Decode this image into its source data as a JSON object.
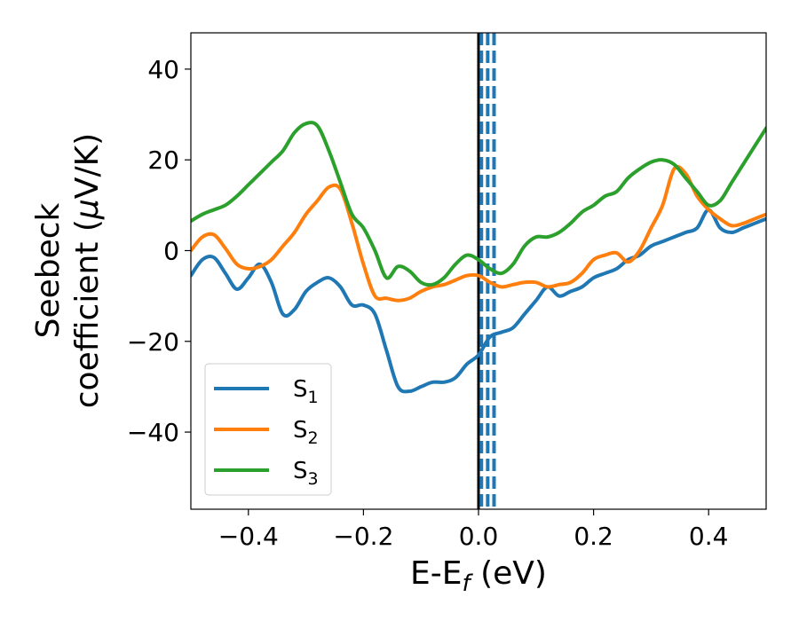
{
  "chart_data": {
    "type": "line",
    "xlabel": {
      "main": "E-E",
      "sub": "f",
      "suffix": " (eV)"
    },
    "ylabel": {
      "line1": "Seebeck",
      "line2_prefix": "coefficient  (",
      "line2_mu": "μ",
      "line2_suffix": "V/K)"
    },
    "xlim": [
      -0.5,
      0.5
    ],
    "ylim": [
      -57,
      48
    ],
    "xticks": [
      -0.4,
      -0.2,
      0.0,
      0.2,
      0.4
    ],
    "xtick_labels": [
      "−0.4",
      "−0.2",
      "0.0",
      "0.2",
      "0.4"
    ],
    "yticks": [
      -40,
      -20,
      0,
      20,
      40
    ],
    "ytick_labels": [
      "−40",
      "−20",
      "0",
      "20",
      "40"
    ],
    "grid": false,
    "legend_position": "lower-left",
    "vlines": [
      {
        "x": 0.0,
        "color": "#000000",
        "style": "solid"
      },
      {
        "x": 0.005,
        "color": "#1f77b4",
        "style": "dashed"
      },
      {
        "x": 0.016,
        "color": "#1f77b4",
        "style": "dashed"
      },
      {
        "x": 0.027,
        "color": "#1f77b4",
        "style": "dashed"
      }
    ],
    "series": [
      {
        "name": "S",
        "sub": "1",
        "color": "#1f77b4",
        "x": [
          -0.5,
          -0.48,
          -0.46,
          -0.44,
          -0.42,
          -0.4,
          -0.38,
          -0.36,
          -0.34,
          -0.32,
          -0.3,
          -0.28,
          -0.26,
          -0.24,
          -0.22,
          -0.2,
          -0.18,
          -0.16,
          -0.14,
          -0.12,
          -0.1,
          -0.08,
          -0.06,
          -0.04,
          -0.02,
          0.0,
          0.02,
          0.04,
          0.06,
          0.08,
          0.1,
          0.12,
          0.14,
          0.16,
          0.18,
          0.2,
          0.22,
          0.24,
          0.26,
          0.28,
          0.3,
          0.32,
          0.34,
          0.36,
          0.38,
          0.4,
          0.42,
          0.44,
          0.46,
          0.48,
          0.5
        ],
        "y": [
          -5.5,
          -2,
          -1.5,
          -5,
          -8.5,
          -6,
          -3,
          -7,
          -14,
          -13,
          -9,
          -7,
          -6,
          -8,
          -12,
          -12,
          -14,
          -22,
          -30,
          -31,
          -30,
          -29,
          -29,
          -28,
          -25,
          -23,
          -19,
          -18,
          -17,
          -14,
          -11,
          -8,
          -10,
          -9,
          -8,
          -6,
          -5,
          -4,
          -2,
          -1,
          1,
          2,
          3,
          4,
          5,
          9,
          5,
          4,
          5,
          6,
          7
        ]
      },
      {
        "name": "S",
        "sub": "2",
        "color": "#ff7f0e",
        "x": [
          -0.5,
          -0.48,
          -0.46,
          -0.44,
          -0.42,
          -0.4,
          -0.38,
          -0.36,
          -0.34,
          -0.32,
          -0.3,
          -0.28,
          -0.26,
          -0.24,
          -0.22,
          -0.2,
          -0.18,
          -0.16,
          -0.14,
          -0.12,
          -0.1,
          -0.08,
          -0.06,
          -0.04,
          -0.02,
          0.0,
          0.02,
          0.04,
          0.06,
          0.08,
          0.1,
          0.12,
          0.14,
          0.16,
          0.18,
          0.2,
          0.22,
          0.24,
          0.26,
          0.28,
          0.3,
          0.32,
          0.34,
          0.36,
          0.38,
          0.4,
          0.42,
          0.44,
          0.46,
          0.48,
          0.5
        ],
        "y": [
          0,
          3,
          3.5,
          0.5,
          -3,
          -4,
          -3.5,
          -2,
          1,
          4,
          8,
          11,
          14,
          13.5,
          6,
          -3,
          -10,
          -10.5,
          -11,
          -10.5,
          -9,
          -8,
          -7.5,
          -6.5,
          -5.5,
          -5.5,
          -7,
          -8,
          -7.5,
          -7,
          -7,
          -8,
          -7.5,
          -7,
          -5,
          -2,
          -1,
          -0.5,
          -2.5,
          0,
          5,
          10,
          18,
          17,
          12,
          9,
          7,
          5.5,
          6,
          7,
          8
        ]
      },
      {
        "name": "S",
        "sub": "3",
        "color": "#2ca02c",
        "x": [
          -0.5,
          -0.48,
          -0.46,
          -0.44,
          -0.42,
          -0.4,
          -0.38,
          -0.36,
          -0.34,
          -0.32,
          -0.3,
          -0.28,
          -0.26,
          -0.24,
          -0.22,
          -0.2,
          -0.18,
          -0.16,
          -0.14,
          -0.12,
          -0.1,
          -0.08,
          -0.06,
          -0.04,
          -0.02,
          0.0,
          0.02,
          0.04,
          0.06,
          0.08,
          0.1,
          0.12,
          0.14,
          0.16,
          0.18,
          0.2,
          0.22,
          0.24,
          0.26,
          0.28,
          0.3,
          0.32,
          0.34,
          0.36,
          0.38,
          0.4,
          0.42,
          0.44,
          0.46,
          0.48,
          0.5
        ],
        "y": [
          6.5,
          8,
          9,
          10,
          12,
          14.5,
          17,
          19.5,
          22,
          26,
          28,
          27.5,
          22,
          15,
          8,
          5,
          0,
          -6,
          -3.5,
          -4.5,
          -7,
          -7.5,
          -6,
          -3,
          -1,
          -2,
          -4,
          -5,
          -3,
          1,
          3,
          3,
          4,
          6,
          8.5,
          10,
          12,
          13,
          16,
          18,
          19.5,
          20,
          19,
          16,
          13,
          10,
          11,
          15,
          19,
          23,
          27
        ]
      }
    ]
  }
}
